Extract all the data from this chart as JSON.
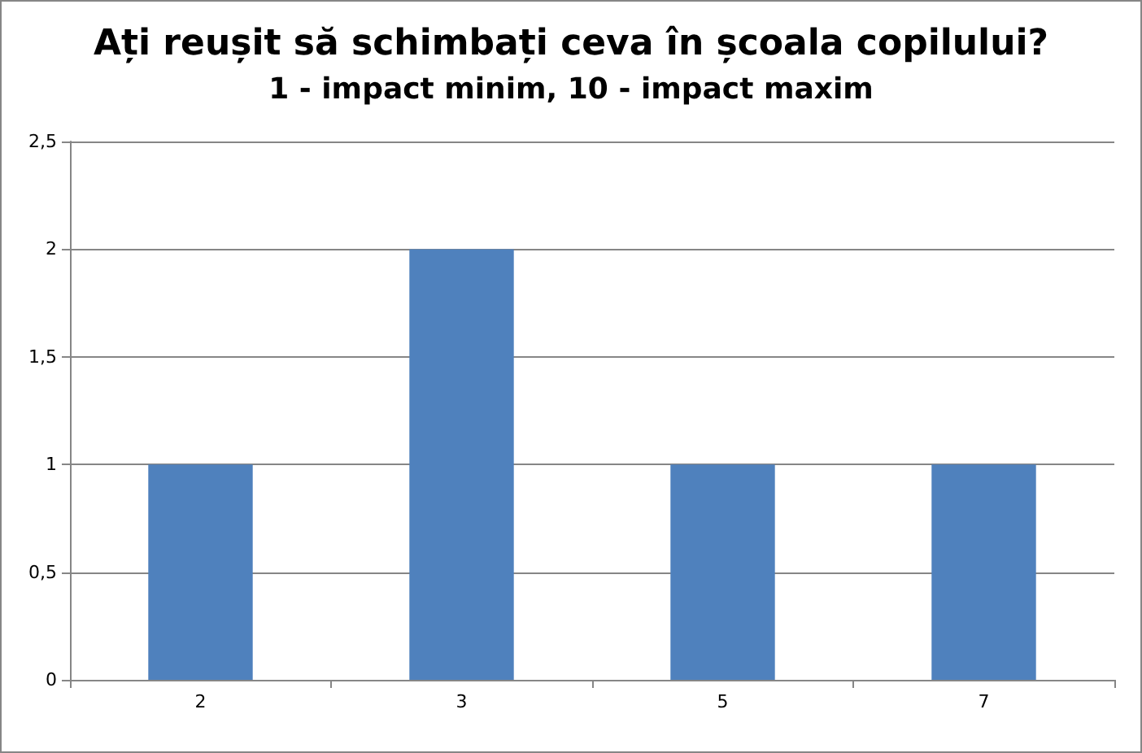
{
  "chart_data": {
    "type": "bar",
    "title": "Ați reușit să schimbați ceva în școala copilului?",
    "subtitle": "1 - impact minim, 10 - impact maxim",
    "categories": [
      "2",
      "3",
      "5",
      "7"
    ],
    "values": [
      1,
      2,
      1,
      1
    ],
    "color": "#4f81bd",
    "ylim": [
      0,
      2.5
    ],
    "yticks": [
      0,
      {
        "value": 0.5,
        "label": "0,5"
      },
      1,
      {
        "value": 1.5,
        "label": "1,5"
      },
      2,
      {
        "value": 2.5,
        "label": "2,5"
      }
    ],
    "grid": "y"
  }
}
